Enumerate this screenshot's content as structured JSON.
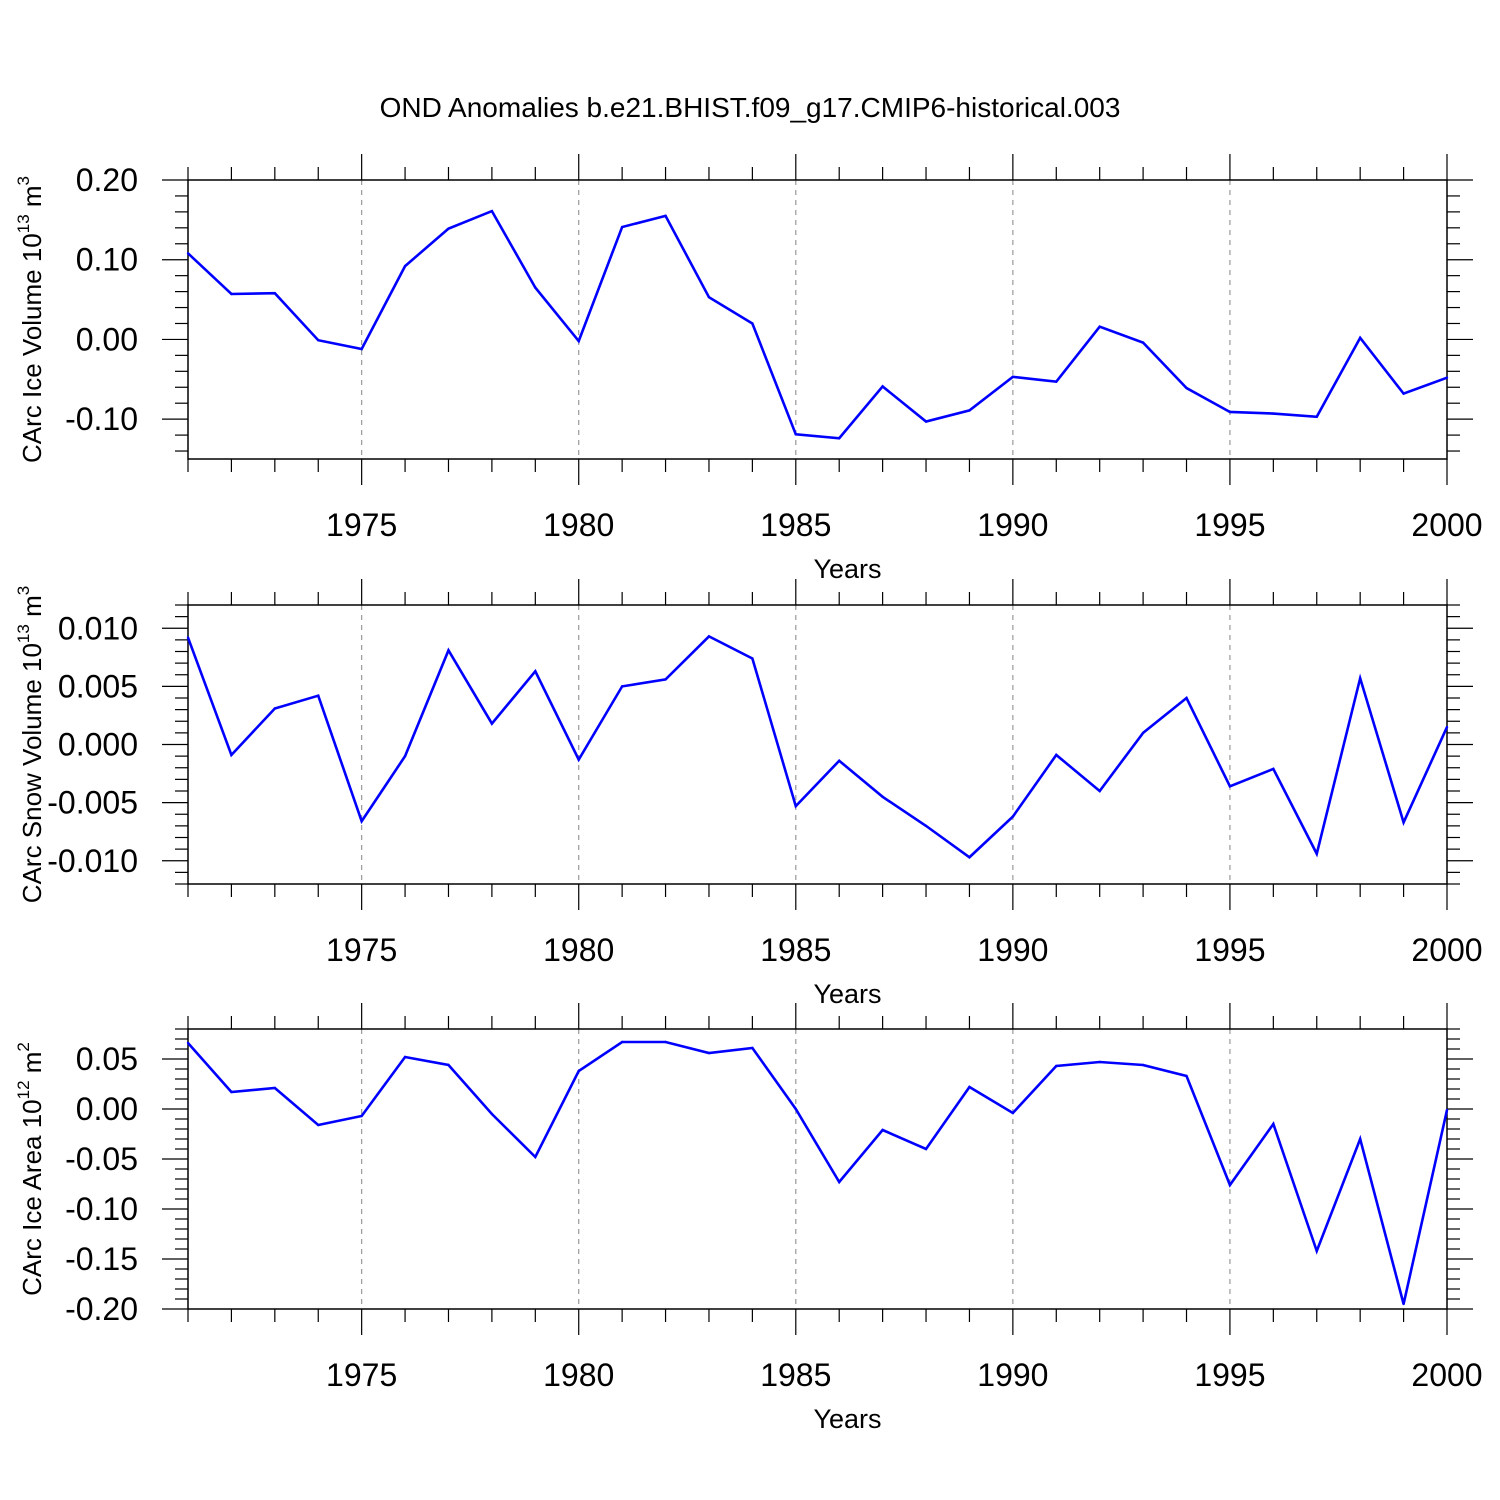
{
  "title": "OND Anomalies b.e21.BHIST.f09_g17.CMIP6-historical.003",
  "series_color": "#0000ff",
  "chart_data": [
    {
      "type": "line",
      "title": "OND Anomalies b.e21.BHIST.f09_g17.CMIP6-historical.003",
      "ylabel": "CArc Ice Volume 10",
      "ylabel_exp": "13",
      "ylabel_unit": " m",
      "ylabel_unit_exp": "3",
      "xlabel": "Years",
      "xlim": [
        1971,
        2000
      ],
      "ylim": [
        -0.15,
        0.2
      ],
      "yticks": [
        -0.1,
        0.0,
        0.1,
        0.2
      ],
      "ytick_labels": [
        "-0.10",
        "0.00",
        "0.10",
        "0.20"
      ],
      "ytick_minor": 0.02,
      "xticks": [
        1975,
        1980,
        1985,
        1990,
        1995,
        2000
      ],
      "xtick_labels": [
        "1975",
        "1980",
        "1985",
        "1990",
        "1995",
        "2000"
      ],
      "grid": "vertical dashed at major years",
      "x": [
        1971,
        1972,
        1973,
        1974,
        1975,
        1976,
        1977,
        1978,
        1979,
        1980,
        1981,
        1982,
        1983,
        1984,
        1985,
        1986,
        1987,
        1988,
        1989,
        1990,
        1991,
        1992,
        1993,
        1994,
        1995,
        1996,
        1997,
        1998,
        1999,
        2000
      ],
      "values": [
        0.108,
        0.057,
        0.058,
        -0.001,
        -0.012,
        0.092,
        0.139,
        0.161,
        0.065,
        -0.002,
        0.141,
        0.155,
        0.053,
        0.02,
        -0.119,
        -0.124,
        -0.059,
        -0.103,
        -0.089,
        -0.047,
        -0.053,
        0.016,
        -0.004,
        -0.061,
        -0.091,
        -0.093,
        -0.097,
        0.002,
        -0.068,
        -0.048
      ]
    },
    {
      "type": "line",
      "ylabel": "CArc Snow Volume 10",
      "ylabel_exp": "13",
      "ylabel_unit": " m",
      "ylabel_unit_exp": "3",
      "xlabel": "Years",
      "xlim": [
        1971,
        2000
      ],
      "ylim": [
        -0.012,
        0.012
      ],
      "yticks": [
        -0.01,
        -0.005,
        0.0,
        0.005,
        0.01
      ],
      "ytick_labels": [
        "-0.010",
        "-0.005",
        "0.000",
        "0.005",
        "0.010"
      ],
      "ytick_minor": 0.001,
      "xticks": [
        1975,
        1980,
        1985,
        1990,
        1995,
        2000
      ],
      "xtick_labels": [
        "1975",
        "1980",
        "1985",
        "1990",
        "1995",
        "2000"
      ],
      "grid": "vertical dashed at major years",
      "x": [
        1971,
        1972,
        1973,
        1974,
        1975,
        1976,
        1977,
        1978,
        1979,
        1980,
        1981,
        1982,
        1983,
        1984,
        1985,
        1986,
        1987,
        1988,
        1989,
        1990,
        1991,
        1992,
        1993,
        1994,
        1995,
        1996,
        1997,
        1998,
        1999,
        2000
      ],
      "values": [
        0.0092,
        -0.0009,
        0.0031,
        0.0042,
        -0.0066,
        -0.001,
        0.0081,
        0.0018,
        0.0063,
        -0.0013,
        0.005,
        0.0056,
        0.0093,
        0.0074,
        -0.0053,
        -0.0014,
        -0.0045,
        -0.007,
        -0.0097,
        -0.0062,
        -0.0009,
        -0.004,
        0.001,
        0.004,
        -0.0036,
        -0.0021,
        -0.0094,
        0.0057,
        -0.0067,
        0.0015
      ]
    },
    {
      "type": "line",
      "ylabel": "CArc Ice Area 10",
      "ylabel_exp": "12",
      "ylabel_unit": " m",
      "ylabel_unit_exp": "2",
      "xlabel": "Years",
      "xlim": [
        1971,
        2000
      ],
      "ylim": [
        -0.2,
        0.08
      ],
      "yticks": [
        -0.2,
        -0.15,
        -0.1,
        -0.05,
        0.0,
        0.05
      ],
      "ytick_labels": [
        "-0.20",
        "-0.15",
        "-0.10",
        "-0.05",
        "0.00",
        "0.05"
      ],
      "ytick_minor": 0.01,
      "xticks": [
        1975,
        1980,
        1985,
        1990,
        1995,
        2000
      ],
      "xtick_labels": [
        "1975",
        "1980",
        "1985",
        "1990",
        "1995",
        "2000"
      ],
      "grid": "vertical dashed at major years",
      "x": [
        1971,
        1972,
        1973,
        1974,
        1975,
        1976,
        1977,
        1978,
        1979,
        1980,
        1981,
        1982,
        1983,
        1984,
        1985,
        1986,
        1987,
        1988,
        1989,
        1990,
        1991,
        1992,
        1993,
        1994,
        1995,
        1996,
        1997,
        1998,
        1999,
        2000
      ],
      "values": [
        0.066,
        0.017,
        0.021,
        -0.016,
        -0.007,
        0.052,
        0.044,
        -0.005,
        -0.048,
        0.038,
        0.067,
        0.067,
        0.056,
        0.061,
        0.0,
        -0.073,
        -0.021,
        -0.04,
        0.022,
        -0.004,
        0.043,
        0.047,
        0.044,
        0.033,
        -0.076,
        -0.015,
        -0.142,
        -0.03,
        -0.195,
        -0.001
      ]
    }
  ]
}
